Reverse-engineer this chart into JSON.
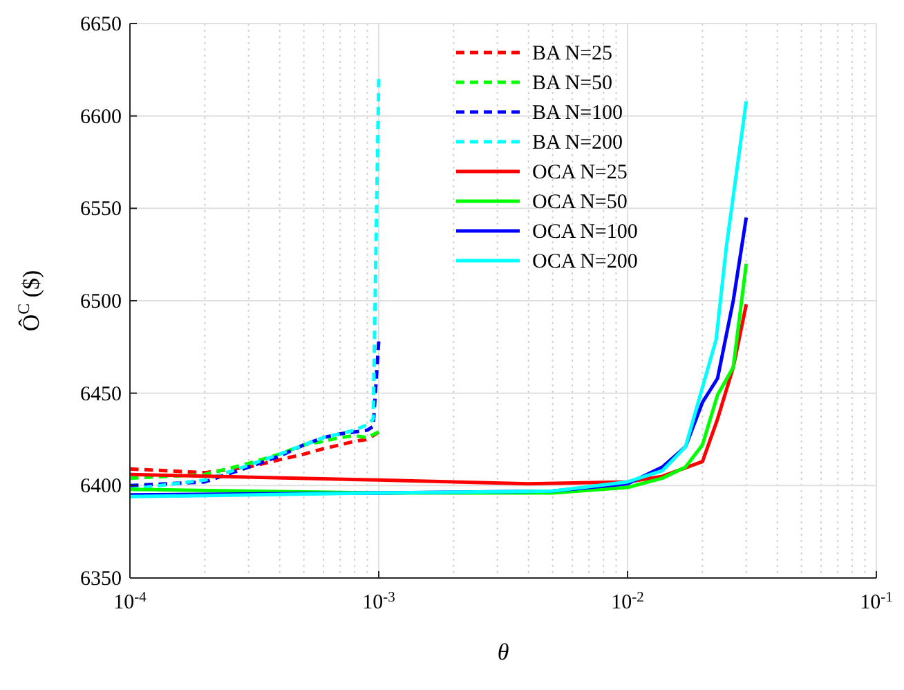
{
  "chart_data": {
    "type": "line",
    "xlabel": "θ",
    "ylabel": "Ô$^{C}$ ($)",
    "log": "x",
    "grid": true,
    "legend": "top",
    "xlim": [
      0.0001,
      0.1
    ],
    "ylim": [
      6350,
      6650
    ],
    "xticks": [
      {
        "value": 0.0001,
        "label": "10$^{-4}$"
      },
      {
        "value": 0.001,
        "label": "10$^{-3}$"
      },
      {
        "value": 0.01,
        "label": "10$^{-2}$"
      },
      {
        "value": 0.1,
        "label": "10$^{-1}$"
      }
    ],
    "yticks": [
      6350,
      6400,
      6450,
      6500,
      6550,
      6600,
      6650
    ],
    "series": [
      {
        "name": "BA N=25",
        "color": "#ff0000",
        "line_style": "dashed",
        "x": [
          0.0001,
          0.0002,
          0.0003,
          0.0004,
          0.0005,
          0.0006,
          0.0007,
          0.0008,
          0.0009,
          0.001
        ],
        "values": [
          6409,
          6407,
          6410,
          6414,
          6417,
          6420,
          6422,
          6424,
          6425,
          6429
        ]
      },
      {
        "name": "BA N=50",
        "color": "#00ff00",
        "line_style": "dashed",
        "x": [
          0.0001,
          0.0002,
          0.0003,
          0.0004,
          0.0005,
          0.0006,
          0.0007,
          0.0008,
          0.0009,
          0.001
        ],
        "values": [
          6404,
          6406,
          6412,
          6417,
          6422,
          6424,
          6426,
          6427,
          6426,
          6429
        ]
      },
      {
        "name": "BA N=100",
        "color": "#0000ff",
        "line_style": "dashed",
        "x": [
          0.0001,
          0.0002,
          0.0003,
          0.0004,
          0.0005,
          0.0006,
          0.0007,
          0.0008,
          0.0009,
          0.00095,
          0.001
        ],
        "values": [
          6400,
          6402,
          6410,
          6416,
          6422,
          6426,
          6428,
          6429,
          6430,
          6432,
          6478
        ]
      },
      {
        "name": "BA N=200",
        "color": "#00ffff",
        "line_style": "dashed",
        "x": [
          0.0001,
          0.0002,
          0.0003,
          0.0004,
          0.0005,
          0.0006,
          0.0007,
          0.0008,
          0.0009,
          0.00095,
          0.001
        ],
        "values": [
          6398,
          6403,
          6411,
          6417,
          6422,
          6426,
          6428,
          6430,
          6433,
          6436,
          6620
        ]
      },
      {
        "name": "OCA N=25",
        "color": "#ff0000",
        "line_style": "solid",
        "x": [
          0.0001,
          0.001,
          0.004,
          0.01,
          0.0138,
          0.02,
          0.023,
          0.0266,
          0.03
        ],
        "values": [
          6406,
          6403,
          6401,
          6402,
          6405,
          6413,
          6436,
          6464,
          6498
        ]
      },
      {
        "name": "OCA N=50",
        "color": "#00ff00",
        "line_style": "solid",
        "x": [
          0.0001,
          0.001,
          0.005,
          0.01,
          0.0138,
          0.0171,
          0.02,
          0.023,
          0.0266,
          0.03
        ],
        "values": [
          6398,
          6396,
          6396,
          6399,
          6404,
          6410,
          6422,
          6449,
          6464,
          6520
        ]
      },
      {
        "name": "OCA N=100",
        "color": "#0000ff",
        "line_style": "solid",
        "x": [
          0.0001,
          0.001,
          0.005,
          0.01,
          0.0138,
          0.0171,
          0.02,
          0.023,
          0.0266,
          0.03
        ],
        "values": [
          6395,
          6396,
          6397,
          6401,
          6410,
          6421,
          6445,
          6458,
          6500,
          6545
        ]
      },
      {
        "name": "OCA N=200",
        "color": "#00ffff",
        "line_style": "solid",
        "x": [
          0.0001,
          0.001,
          0.005,
          0.01,
          0.0138,
          0.0171,
          0.0227,
          0.025,
          0.03
        ],
        "values": [
          6394,
          6396,
          6397,
          6402,
          6408,
          6421,
          6479,
          6530,
          6608
        ]
      }
    ]
  }
}
